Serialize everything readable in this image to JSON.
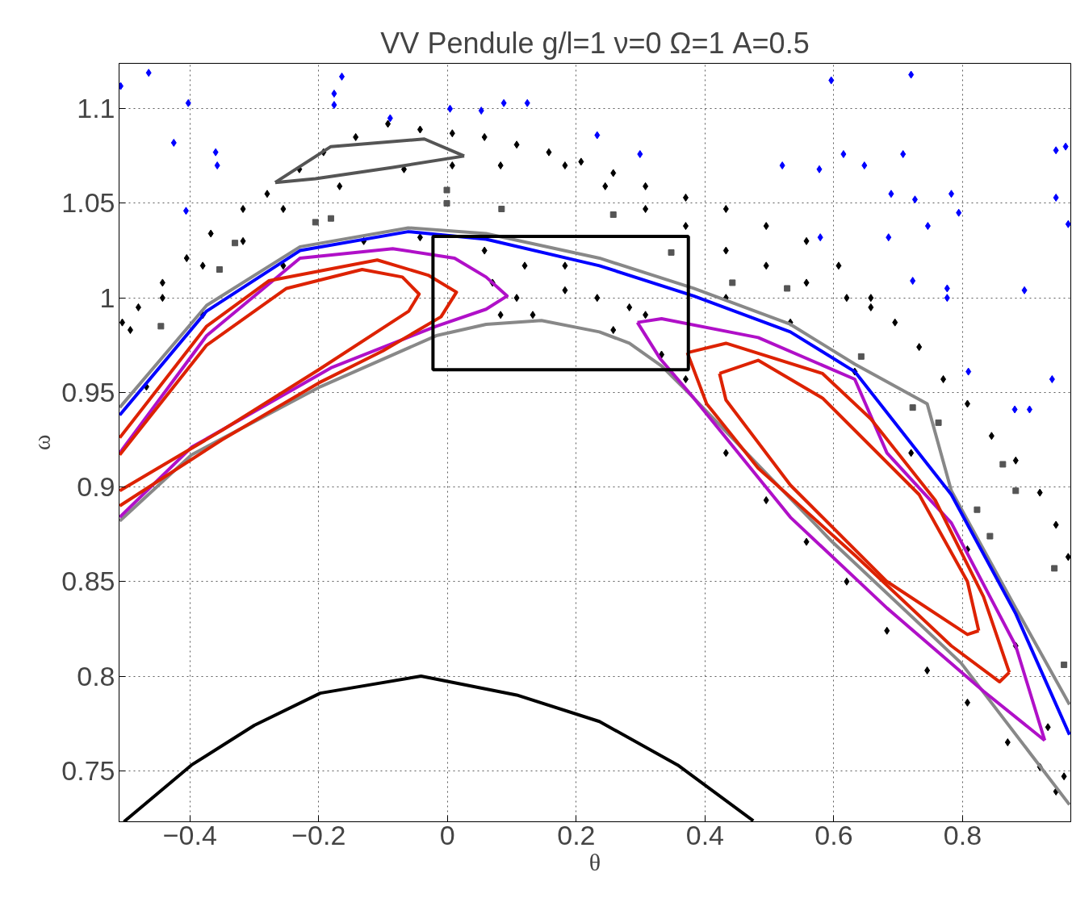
{
  "chart_data": {
    "type": "line",
    "title": "VV Pendule g/l=1 ν=0 Ω=1 A=0.5",
    "xlabel": "θ",
    "ylabel": "ω",
    "xlim": [
      -0.51,
      0.968
    ],
    "ylim": [
      0.723,
      1.124
    ],
    "xticks": [
      -0.4,
      -0.2,
      0,
      0.2,
      0.4,
      0.6,
      0.8
    ],
    "yticks": [
      0.75,
      0.8,
      0.85,
      0.9,
      0.95,
      1,
      1.05,
      1.1
    ],
    "grid": true,
    "line_style": "solid",
    "series": [
      {
        "type": "scatter",
        "marker": "diamond",
        "color": "#0000ff",
        "x": [
          -0.5075,
          -0.464,
          -0.4025,
          -0.425,
          -0.36,
          -0.3575,
          -0.406,
          -0.176,
          -0.176,
          -0.164,
          -0.089,
          0.004,
          0.0525,
          0.0875,
          0.124,
          0.2325,
          0.299,
          0.52,
          0.596,
          0.615,
          0.7075,
          0.72,
          0.689,
          0.5775,
          0.579,
          0.6475,
          0.726,
          0.7825,
          0.794,
          0.746,
          0.685,
          0.7225,
          0.776,
          0.776,
          0.896,
          0.809,
          0.939,
          0.881,
          0.904,
          0.945,
          0.96,
          0.945,
          0.964
        ],
        "values": [
          1.112,
          1.119,
          1.103,
          1.082,
          1.077,
          1.07,
          1.046,
          1.108,
          1.102,
          1.117,
          1.095,
          1.1,
          1.099,
          1.103,
          1.103,
          1.086,
          1.076,
          1.07,
          1.115,
          1.076,
          1.076,
          1.118,
          1.055,
          1.068,
          1.032,
          1.07,
          1.052,
          1.055,
          1.045,
          1.038,
          1.032,
          1.009,
          1.005,
          1.0,
          1.004,
          0.961,
          0.957,
          0.941,
          0.941,
          1.078,
          1.08,
          1.053,
          1.039
        ]
      },
      {
        "type": "scatter",
        "marker": "diamond",
        "color": "#000000",
        "x": [
          -0.505,
          -0.48,
          -0.4425,
          -0.405,
          -0.3675,
          -0.3175,
          -0.28,
          -0.23,
          -0.1925,
          -0.1425,
          -0.0925,
          -0.0425,
          0.0075,
          0.0575,
          0.1075,
          0.1575,
          0.2075,
          0.2575,
          0.3075,
          0.37,
          0.4325,
          0.495,
          0.5575,
          0.6075,
          0.6575,
          0.695,
          0.7325,
          0.77,
          0.8075,
          0.845,
          0.8825,
          0.92,
          0.945,
          0.964,
          -0.0675,
          0.0075,
          0.0825,
          0.1825,
          0.245,
          0.3075,
          0.37,
          0.4325,
          0.495,
          0.5575,
          0.62,
          0.6575,
          -0.1675,
          -0.255,
          -0.3175,
          -0.38,
          -0.4425,
          -0.4925,
          0.07,
          0.1075,
          0.1325,
          0.1825,
          0.2325,
          0.2825,
          0.3075,
          0.1825,
          0.12,
          0.0575,
          0.0825,
          0.2575,
          0.3325,
          0.37,
          0.4325,
          0.495,
          0.5575,
          0.62,
          0.6825,
          0.745,
          0.8075,
          0.87,
          0.92,
          0.945,
          0.9575,
          0.9325,
          0.8825,
          0.8075,
          0.72,
          0.6325,
          0.5325,
          0.4325,
          -0.4675,
          -0.38,
          -0.255,
          -0.13,
          -0.0425
        ],
        "values": [
          0.987,
          0.995,
          1.008,
          1.021,
          1.034,
          1.047,
          1.055,
          1.068,
          1.077,
          1.085,
          1.092,
          1.089,
          1.087,
          1.085,
          1.081,
          1.077,
          1.072,
          1.066,
          1.059,
          1.053,
          1.047,
          1.038,
          1.03,
          1.017,
          1.0,
          0.987,
          0.974,
          0.957,
          0.944,
          0.927,
          0.914,
          0.897,
          0.88,
          0.863,
          1.068,
          1.07,
          1.07,
          1.07,
          1.059,
          1.047,
          1.038,
          1.025,
          1.017,
          1.008,
          1.0,
          0.995,
          1.059,
          1.047,
          1.03,
          1.017,
          1.0,
          0.983,
          1.008,
          1.0,
          0.991,
          1.004,
          1.0,
          0.995,
          0.991,
          1.017,
          1.017,
          1.025,
          0.991,
          0.983,
          0.97,
          0.957,
          0.918,
          0.893,
          0.871,
          0.85,
          0.824,
          0.803,
          0.786,
          0.765,
          0.752,
          0.739,
          0.747,
          0.773,
          0.816,
          0.867,
          0.918,
          0.961,
          0.987,
          1.0,
          0.953,
          0.991,
          1.017,
          1.03,
          1.032
        ]
      },
      {
        "type": "scatter",
        "marker": "square",
        "color": "#555555",
        "x": [
          -0.001,
          -0.001,
          0.084,
          -0.181,
          -0.205,
          -0.33,
          -0.354,
          -0.445,
          0.2575,
          0.3475,
          0.4425,
          0.5275,
          0.6425,
          0.7225,
          0.7625,
          0.8225,
          0.8425,
          0.8625,
          0.8825,
          0.9425,
          0.9575
        ],
        "values": [
          1.057,
          1.05,
          1.047,
          1.042,
          1.04,
          1.029,
          1.015,
          0.985,
          1.044,
          1.024,
          1.008,
          1.005,
          0.969,
          0.942,
          0.934,
          0.888,
          0.874,
          0.912,
          0.898,
          0.857,
          0.806
        ]
      },
      {
        "color": "#555555",
        "x": [
          -0.2675,
          -0.181,
          -0.036,
          0.026
        ],
        "values": [
          1.061,
          1.08,
          1.084,
          1.075
        ]
      },
      {
        "color": "#555555",
        "x": [
          -0.2675,
          -0.205,
          -0.085,
          0.026
        ],
        "values": [
          1.061,
          1.063,
          1.069,
          1.075
        ]
      },
      {
        "color": "#888888",
        "x": [
          -0.509,
          -0.374,
          -0.229,
          -0.061,
          0.06,
          0.236,
          0.3825,
          0.5325,
          0.6325,
          0.745,
          0.7825,
          0.8825,
          0.966
        ],
        "values": [
          0.942,
          0.996,
          1.027,
          1.037,
          1.034,
          1.021,
          1.005,
          0.986,
          0.965,
          0.944,
          0.898,
          0.836,
          0.785
        ]
      },
      {
        "color": "#888888",
        "x": [
          -0.509,
          -0.3975,
          -0.1975,
          -0.0175,
          0.06,
          0.146,
          0.236,
          0.2825,
          0.3325,
          0.3825,
          0.5975,
          0.7975,
          0.966
        ],
        "values": [
          0.882,
          0.917,
          0.953,
          0.98,
          0.986,
          0.988,
          0.982,
          0.976,
          0.964,
          0.947,
          0.871,
          0.807,
          0.732
        ]
      },
      {
        "color": "#0000ff",
        "x": [
          -0.509,
          -0.374,
          -0.229,
          -0.061,
          0.06,
          0.236,
          0.3825,
          0.5325,
          0.6325,
          0.7825,
          0.8825,
          0.966
        ],
        "values": [
          0.938,
          0.993,
          1.025,
          1.035,
          1.031,
          1.017,
          1.001,
          0.982,
          0.961,
          0.896,
          0.833,
          0.769
        ]
      },
      {
        "color": "#b010c8",
        "x": [
          -0.509,
          -0.374,
          -0.229,
          -0.085,
          0.011,
          0.06,
          0.0925,
          0.06,
          -0.0175,
          -0.181,
          -0.325,
          -0.3975,
          -0.509
        ],
        "values": [
          0.918,
          0.98,
          1.021,
          1.026,
          1.021,
          1.011,
          1.001,
          0.994,
          0.985,
          0.963,
          0.935,
          0.921,
          0.884
        ]
      },
      {
        "color": "#b010c8",
        "x": [
          0.295,
          0.3325,
          0.4825,
          0.6325,
          0.6825,
          0.7825,
          0.8825,
          0.9275
        ],
        "values": [
          0.987,
          0.989,
          0.979,
          0.957,
          0.918,
          0.881,
          0.816,
          0.766
        ]
      },
      {
        "color": "#b010c8",
        "x": [
          0.295,
          0.33,
          0.3825,
          0.5325,
          0.6825,
          0.8325,
          0.9275
        ],
        "values": [
          0.987,
          0.968,
          0.947,
          0.884,
          0.836,
          0.792,
          0.766
        ]
      },
      {
        "color": "#dd2200",
        "x": [
          -0.509,
          -0.374,
          -0.2775,
          -0.109,
          -0.03,
          0.014,
          -0.01,
          -0.1,
          -0.2,
          -0.35,
          -0.509
        ],
        "values": [
          0.926,
          0.985,
          1.009,
          1.02,
          1.012,
          1.003,
          0.99,
          0.972,
          0.955,
          0.925,
          0.89
        ]
      },
      {
        "color": "#dd2200",
        "x": [
          -0.509,
          -0.374,
          -0.25,
          -0.1325,
          -0.07,
          -0.044,
          -0.06,
          -0.2,
          -0.35,
          -0.509
        ],
        "values": [
          0.917,
          0.975,
          1.005,
          1.015,
          1.011,
          1.002,
          0.993,
          0.962,
          0.93,
          0.898
        ]
      },
      {
        "color": "#dd2200",
        "x": [
          0.3725,
          0.4325,
          0.5825,
          0.6575,
          0.7575,
          0.8325,
          0.8725
        ],
        "values": [
          0.971,
          0.976,
          0.96,
          0.936,
          0.893,
          0.842,
          0.802
        ]
      },
      {
        "color": "#dd2200",
        "x": [
          0.3725,
          0.4025,
          0.4825,
          0.6325,
          0.7825,
          0.8575,
          0.8725
        ],
        "values": [
          0.971,
          0.944,
          0.91,
          0.864,
          0.816,
          0.797,
          0.802
        ]
      },
      {
        "color": "#dd2200",
        "x": [
          0.4225,
          0.4825,
          0.5825,
          0.7325,
          0.8075,
          0.825
        ],
        "values": [
          0.96,
          0.967,
          0.947,
          0.896,
          0.85,
          0.824
        ]
      },
      {
        "color": "#dd2200",
        "x": [
          0.4225,
          0.4325,
          0.5325,
          0.6825,
          0.8075,
          0.825
        ],
        "values": [
          0.96,
          0.946,
          0.901,
          0.85,
          0.822,
          0.824
        ]
      },
      {
        "color": "#000000",
        "x": [
          -0.5025,
          -0.3975,
          -0.3,
          -0.1975,
          -0.041,
          0.1075,
          0.236,
          0.3575,
          0.475
        ],
        "values": [
          0.723,
          0.753,
          0.774,
          0.791,
          0.8,
          0.79,
          0.776,
          0.753,
          0.7235
        ]
      }
    ]
  }
}
